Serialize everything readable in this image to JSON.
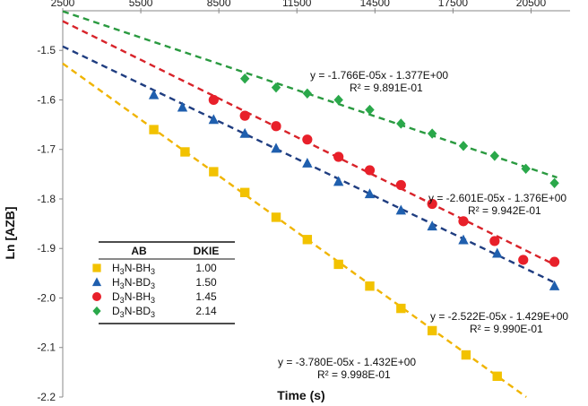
{
  "chart_data": {
    "type": "scatter",
    "title": "",
    "xlabel": "Time (s)",
    "ylabel": "Ln [AZB]",
    "xlim": [
      2500,
      22000
    ],
    "ylim": [
      -2.2,
      -1.42
    ],
    "x_ticks": [
      "2500",
      "5500",
      "8500",
      "11500",
      "14500",
      "17500",
      "20500"
    ],
    "y_ticks": [
      "-1.5",
      "-1.6",
      "-1.7",
      "-1.8",
      "-1.9",
      "-2.0",
      "-2.1",
      "-2.2"
    ],
    "x_axis_position": "top",
    "grid": false,
    "legend": {
      "position": "lower-left",
      "headers": [
        "AB",
        "DKIE"
      ],
      "rows": [
        {
          "sub": [
            "H",
            "3",
            "N-BH",
            "3"
          ],
          "dkie": "1.00"
        },
        {
          "sub": [
            "H",
            "3",
            "N-BD",
            "3"
          ],
          "dkie": "1.50"
        },
        {
          "sub": [
            "D",
            "3",
            "N-BH",
            "3"
          ],
          "dkie": "1.45"
        },
        {
          "sub": [
            "D",
            "3",
            "N-BD",
            "3"
          ],
          "dkie": "2.14"
        }
      ]
    },
    "series": [
      {
        "marker": "square",
        "color": "#f2c200",
        "fit_color": "#f0b400",
        "slope": -3.78e-05,
        "intercept": -1.432,
        "fit_x_range": [
          2500,
          21000
        ],
        "equation": "y = -3.780E-05x - 1.432E+00",
        "r2": "R² = 9.998E-01",
        "x": [
          6000,
          7200,
          8300,
          9500,
          10700,
          11900,
          13100,
          14300,
          15500,
          16700,
          18000,
          19200
        ],
        "y": [
          -1.66,
          -1.705,
          -1.745,
          -1.787,
          -1.837,
          -1.882,
          -1.932,
          -1.976,
          -2.021,
          -2.066,
          -2.115,
          -2.158
        ]
      },
      {
        "marker": "triangle",
        "color": "#1f5fae",
        "fit_color": "#1f3d80",
        "slope": -2.522e-05,
        "intercept": -1.429,
        "fit_x_range": [
          2500,
          21500
        ],
        "equation": "y = -2.522E-05x - 1.429E+00",
        "r2": "R² = 9.990E-01",
        "x": [
          6000,
          7100,
          8300,
          9500,
          10700,
          11900,
          13100,
          14300,
          15500,
          16700,
          17900,
          19200,
          21400
        ],
        "y": [
          -1.59,
          -1.615,
          -1.64,
          -1.668,
          -1.698,
          -1.728,
          -1.765,
          -1.79,
          -1.823,
          -1.855,
          -1.883,
          -1.91,
          -1.976
        ]
      },
      {
        "marker": "circle",
        "color": "#e8202a",
        "fit_color": "#d8232a",
        "slope": -2.601e-05,
        "intercept": -1.376,
        "fit_x_range": [
          2500,
          21500
        ],
        "equation": "y = -2.601E-05x - 1.376E+00",
        "r2": "R² = 9.942E-01",
        "x": [
          8300,
          9500,
          10700,
          11900,
          13100,
          14300,
          15500,
          16700,
          17900,
          19100,
          20200,
          21400
        ],
        "y": [
          -1.6,
          -1.632,
          -1.653,
          -1.68,
          -1.715,
          -1.742,
          -1.772,
          -1.81,
          -1.845,
          -1.885,
          -1.923,
          -1.927
        ]
      },
      {
        "marker": "diamond",
        "color": "#2aa84a",
        "fit_color": "#2a9a40",
        "slope": -1.766e-05,
        "intercept": -1.377,
        "fit_x_range": [
          2500,
          21500
        ],
        "equation": "y = -1.766E-05x - 1.377E+00",
        "r2": "R² = 9.891E-01",
        "x": [
          9500,
          10700,
          11900,
          13100,
          14300,
          15500,
          16700,
          17900,
          19100,
          20300,
          21400
        ],
        "y": [
          -1.557,
          -1.575,
          -1.587,
          -1.6,
          -1.62,
          -1.648,
          -1.668,
          -1.693,
          -1.713,
          -1.739,
          -1.768
        ]
      }
    ]
  }
}
